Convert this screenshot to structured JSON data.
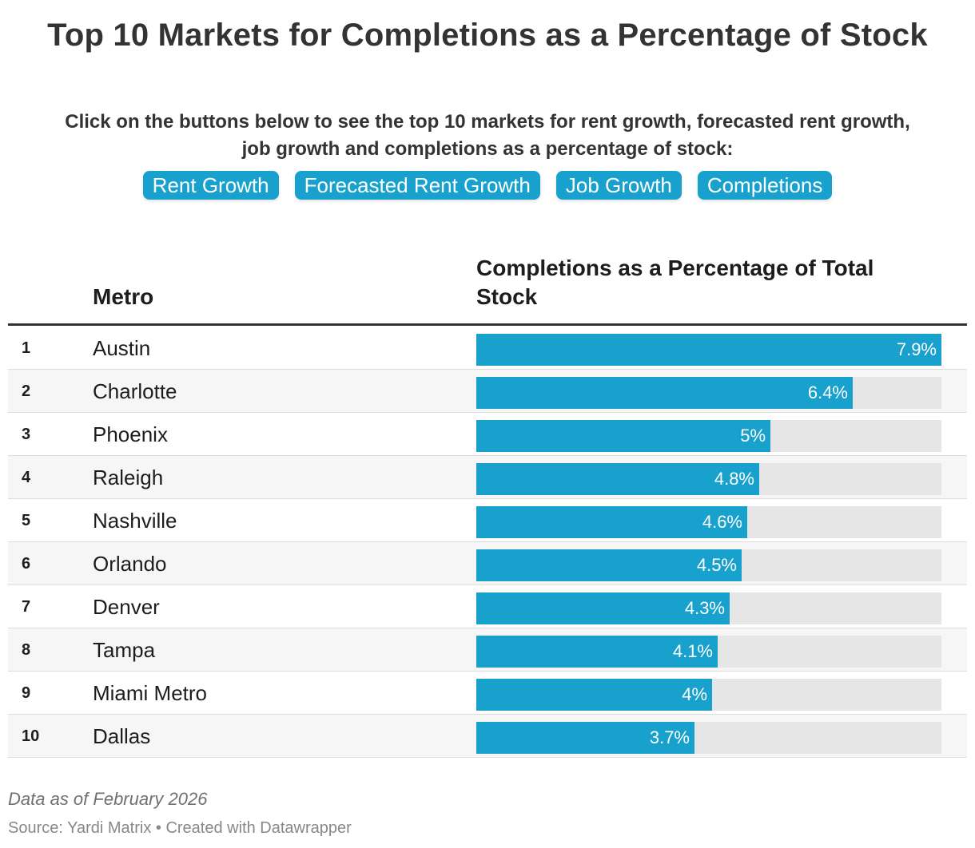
{
  "title": "Top 10 Markets for Completions as a Percentage of Stock",
  "intro": {
    "line1": "Click on the buttons below to see the top 10 markets for rent growth, forecasted rent growth,",
    "line2": "job growth and completions as a percentage of stock:"
  },
  "buttons": [
    "Rent Growth",
    "Forecasted Rent Growth",
    "Job Growth",
    "Completions"
  ],
  "table": {
    "col_metro": "Metro",
    "col_value_line1": "Completions as a Percentage of Total",
    "col_value_line2": "Stock"
  },
  "colors": {
    "accent": "#18a1cd",
    "track": "#e6e6e6",
    "title": "#333333"
  },
  "chart_data": {
    "type": "bar",
    "orientation": "horizontal",
    "categories": [
      "Austin",
      "Charlotte",
      "Phoenix",
      "Raleigh",
      "Nashville",
      "Orlando",
      "Denver",
      "Tampa",
      "Miami Metro",
      "Dallas"
    ],
    "ranks": [
      "1",
      "2",
      "3",
      "4",
      "5",
      "6",
      "7",
      "8",
      "9",
      "10"
    ],
    "values": [
      7.9,
      6.4,
      5,
      4.8,
      4.6,
      4.5,
      4.3,
      4.1,
      4,
      3.7
    ],
    "labels": [
      "7.9%",
      "6.4%",
      "5%",
      "4.8%",
      "4.6%",
      "4.5%",
      "4.3%",
      "4.1%",
      "4%",
      "3.7%"
    ],
    "max": 7.9,
    "grid": false
  },
  "footer": {
    "note": "Data as of February 2026",
    "source": "Source: Yardi Matrix • Created with Datawrapper"
  }
}
